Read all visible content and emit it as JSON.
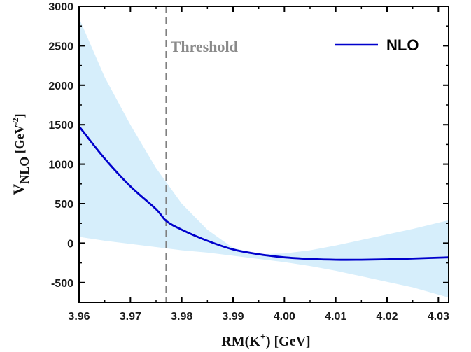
{
  "chart_data": {
    "type": "line",
    "xlabel": {
      "main": "RM(K",
      "sup": "+",
      "unit": ") [GeV]"
    },
    "ylabel": {
      "main": "V",
      "sub": "NLO",
      "unit": " [GeV",
      "sup": "-2",
      "close": "]"
    },
    "xlim": [
      3.96,
      4.032
    ],
    "ylim": [
      -750,
      3000
    ],
    "xticks": [
      3.96,
      3.97,
      3.98,
      3.99,
      4.0,
      4.01,
      4.02,
      4.03
    ],
    "xtick_labels": [
      "3.96",
      "3.97",
      "3.98",
      "3.99",
      "4.00",
      "4.01",
      "4.02",
      "4.03"
    ],
    "yticks": [
      -500,
      0,
      500,
      1000,
      1500,
      2000,
      2500,
      3000
    ],
    "ytick_labels": [
      "-500",
      "0",
      "500",
      "1000",
      "1500",
      "2000",
      "2500",
      "3000"
    ],
    "grid": false,
    "legend_position": "top-right",
    "series": [
      {
        "name": "NLO",
        "color": "#0000cc",
        "x": [
          3.96,
          3.965,
          3.97,
          3.975,
          3.977,
          3.98,
          3.985,
          3.99,
          3.995,
          4.0,
          4.005,
          4.01,
          4.015,
          4.02,
          4.025,
          4.032
        ],
        "y": [
          1480,
          1070,
          720,
          430,
          280,
          170,
          30,
          -80,
          -140,
          -180,
          -200,
          -210,
          -210,
          -205,
          -195,
          -180
        ]
      }
    ],
    "band": {
      "color": "#d6eefb",
      "x": [
        3.96,
        3.965,
        3.97,
        3.975,
        3.98,
        3.985,
        3.99,
        3.995,
        4.0,
        4.005,
        4.01,
        4.015,
        4.02,
        4.025,
        4.032
      ],
      "upper": [
        2850,
        2100,
        1500,
        950,
        500,
        170,
        -60,
        -140,
        -130,
        -90,
        -30,
        40,
        110,
        180,
        290
      ],
      "lower": [
        80,
        30,
        -10,
        -50,
        -90,
        -120,
        -160,
        -200,
        -240,
        -290,
        -350,
        -420,
        -490,
        -560,
        -690
      ]
    },
    "threshold": {
      "label": "Threshold",
      "x": 3.977,
      "color": "#808080"
    }
  }
}
